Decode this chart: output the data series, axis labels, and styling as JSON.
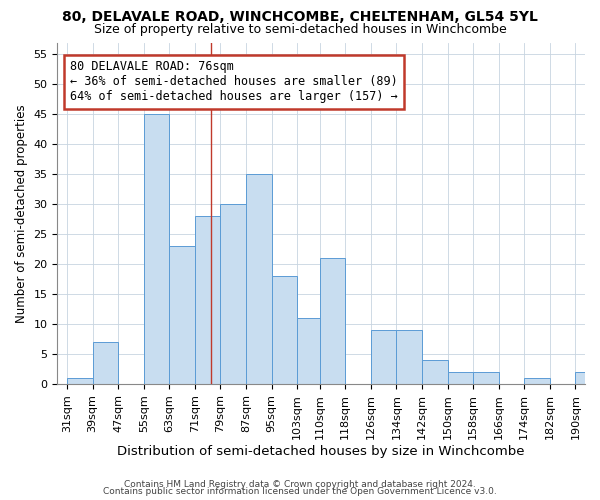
{
  "title": "80, DELAVALE ROAD, WINCHCOMBE, CHELTENHAM, GL54 5YL",
  "subtitle": "Size of property relative to semi-detached houses in Winchcombe",
  "xlabel": "Distribution of semi-detached houses by size in Winchcombe",
  "ylabel": "Number of semi-detached properties",
  "footnote1": "Contains HM Land Registry data © Crown copyright and database right 2024.",
  "footnote2": "Contains public sector information licensed under the Open Government Licence v3.0.",
  "bin_edges": [
    31,
    39,
    47,
    55,
    63,
    71,
    79,
    87,
    95,
    103,
    110,
    118,
    126,
    134,
    142,
    150,
    158,
    166,
    174,
    182,
    190,
    198
  ],
  "bar_heights": [
    1,
    7,
    0,
    45,
    23,
    28,
    30,
    35,
    18,
    11,
    21,
    0,
    9,
    9,
    4,
    2,
    2,
    0,
    1,
    0,
    2
  ],
  "bar_color": "#c8ddf0",
  "bar_edge_color": "#5b9bd5",
  "ylim": [
    0,
    57
  ],
  "yticks": [
    0,
    5,
    10,
    15,
    20,
    25,
    30,
    35,
    40,
    45,
    50,
    55
  ],
  "property_line_x": 76,
  "property_line_color": "#c0392b",
  "annotation_title": "80 DELAVALE ROAD: 76sqm",
  "annotation_line1": "← 36% of semi-detached houses are smaller (89)",
  "annotation_line2": "64% of semi-detached houses are larger (157) →",
  "annotation_box_color": "#c0392b",
  "annotation_text_color": "#000000",
  "background_color": "#ffffff",
  "grid_color": "#c8d4e0",
  "title_fontsize": 10,
  "subtitle_fontsize": 9,
  "xlabel_fontsize": 9.5,
  "ylabel_fontsize": 8.5,
  "tick_label_fontsize": 8,
  "annotation_fontsize": 8.5,
  "footnote_fontsize": 6.5
}
